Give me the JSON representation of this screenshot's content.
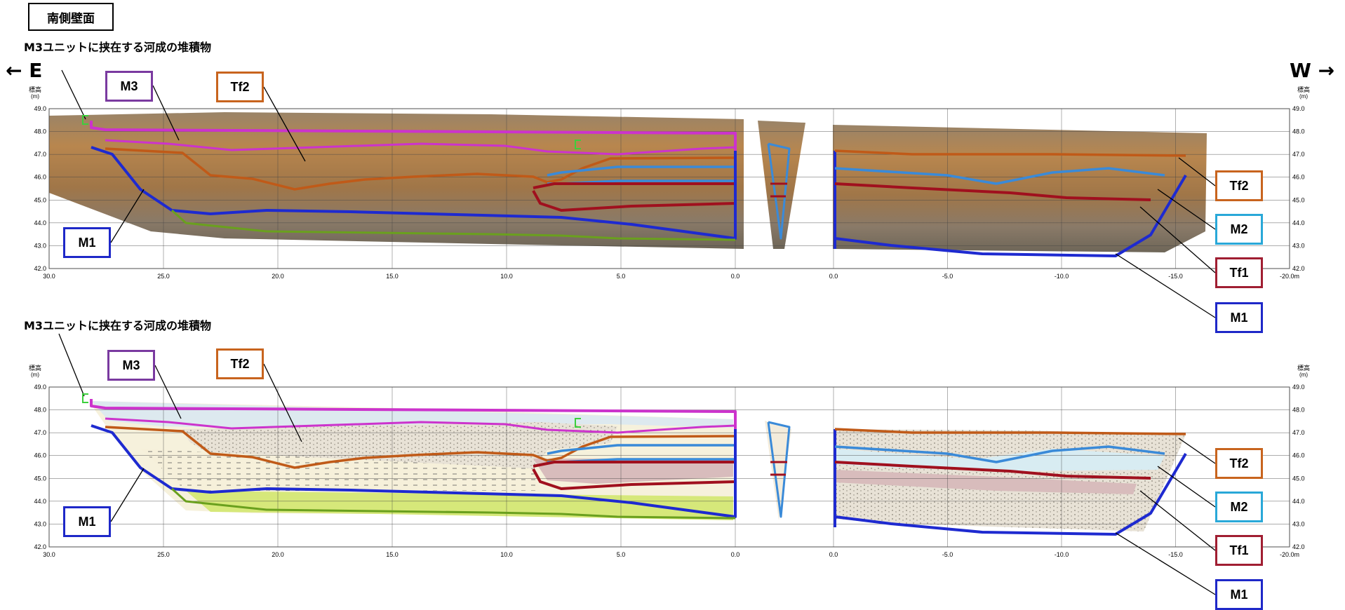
{
  "title": "南側壁面",
  "note": "M3ユニットに挟在する河成の堆積物",
  "direction": {
    "east": "← E",
    "west": "W →"
  },
  "axis": {
    "elev_label_1": "標高",
    "elev_label_2": "(m)",
    "y_ticks": [
      "49.0",
      "48.0",
      "47.0",
      "46.0",
      "45.0",
      "44.0",
      "43.0",
      "42.0"
    ],
    "x_ticks_left": [
      "30.0",
      "25.0",
      "20.0",
      "15.0",
      "10.0",
      "5.0",
      "0.0"
    ],
    "x_ticks_right": [
      "0.0",
      "-5.0",
      "-10.0",
      "-15.0",
      "-20.0m"
    ]
  },
  "units": [
    {
      "id": "M3",
      "label": "M3",
      "color": "#7a3aa0"
    },
    {
      "id": "Tf2",
      "label": "Tf2",
      "color": "#c8641e"
    },
    {
      "id": "M2",
      "label": "M2",
      "color": "#29a8d8"
    },
    {
      "id": "Tf1",
      "label": "Tf1",
      "color": "#a01e32"
    },
    {
      "id": "M1",
      "label": "M1",
      "color": "#1e28c8"
    }
  ],
  "colors": {
    "m3_line": "#cc33cc",
    "tf2_line": "#c05a18",
    "m2_line": "#3a8ad8",
    "tf1_line": "#a0101e",
    "m1_line": "#1e2ad0",
    "base_line": "#6aa01e",
    "photo_soil": "#a88858",
    "sketch_fill": "#f4eed8"
  }
}
